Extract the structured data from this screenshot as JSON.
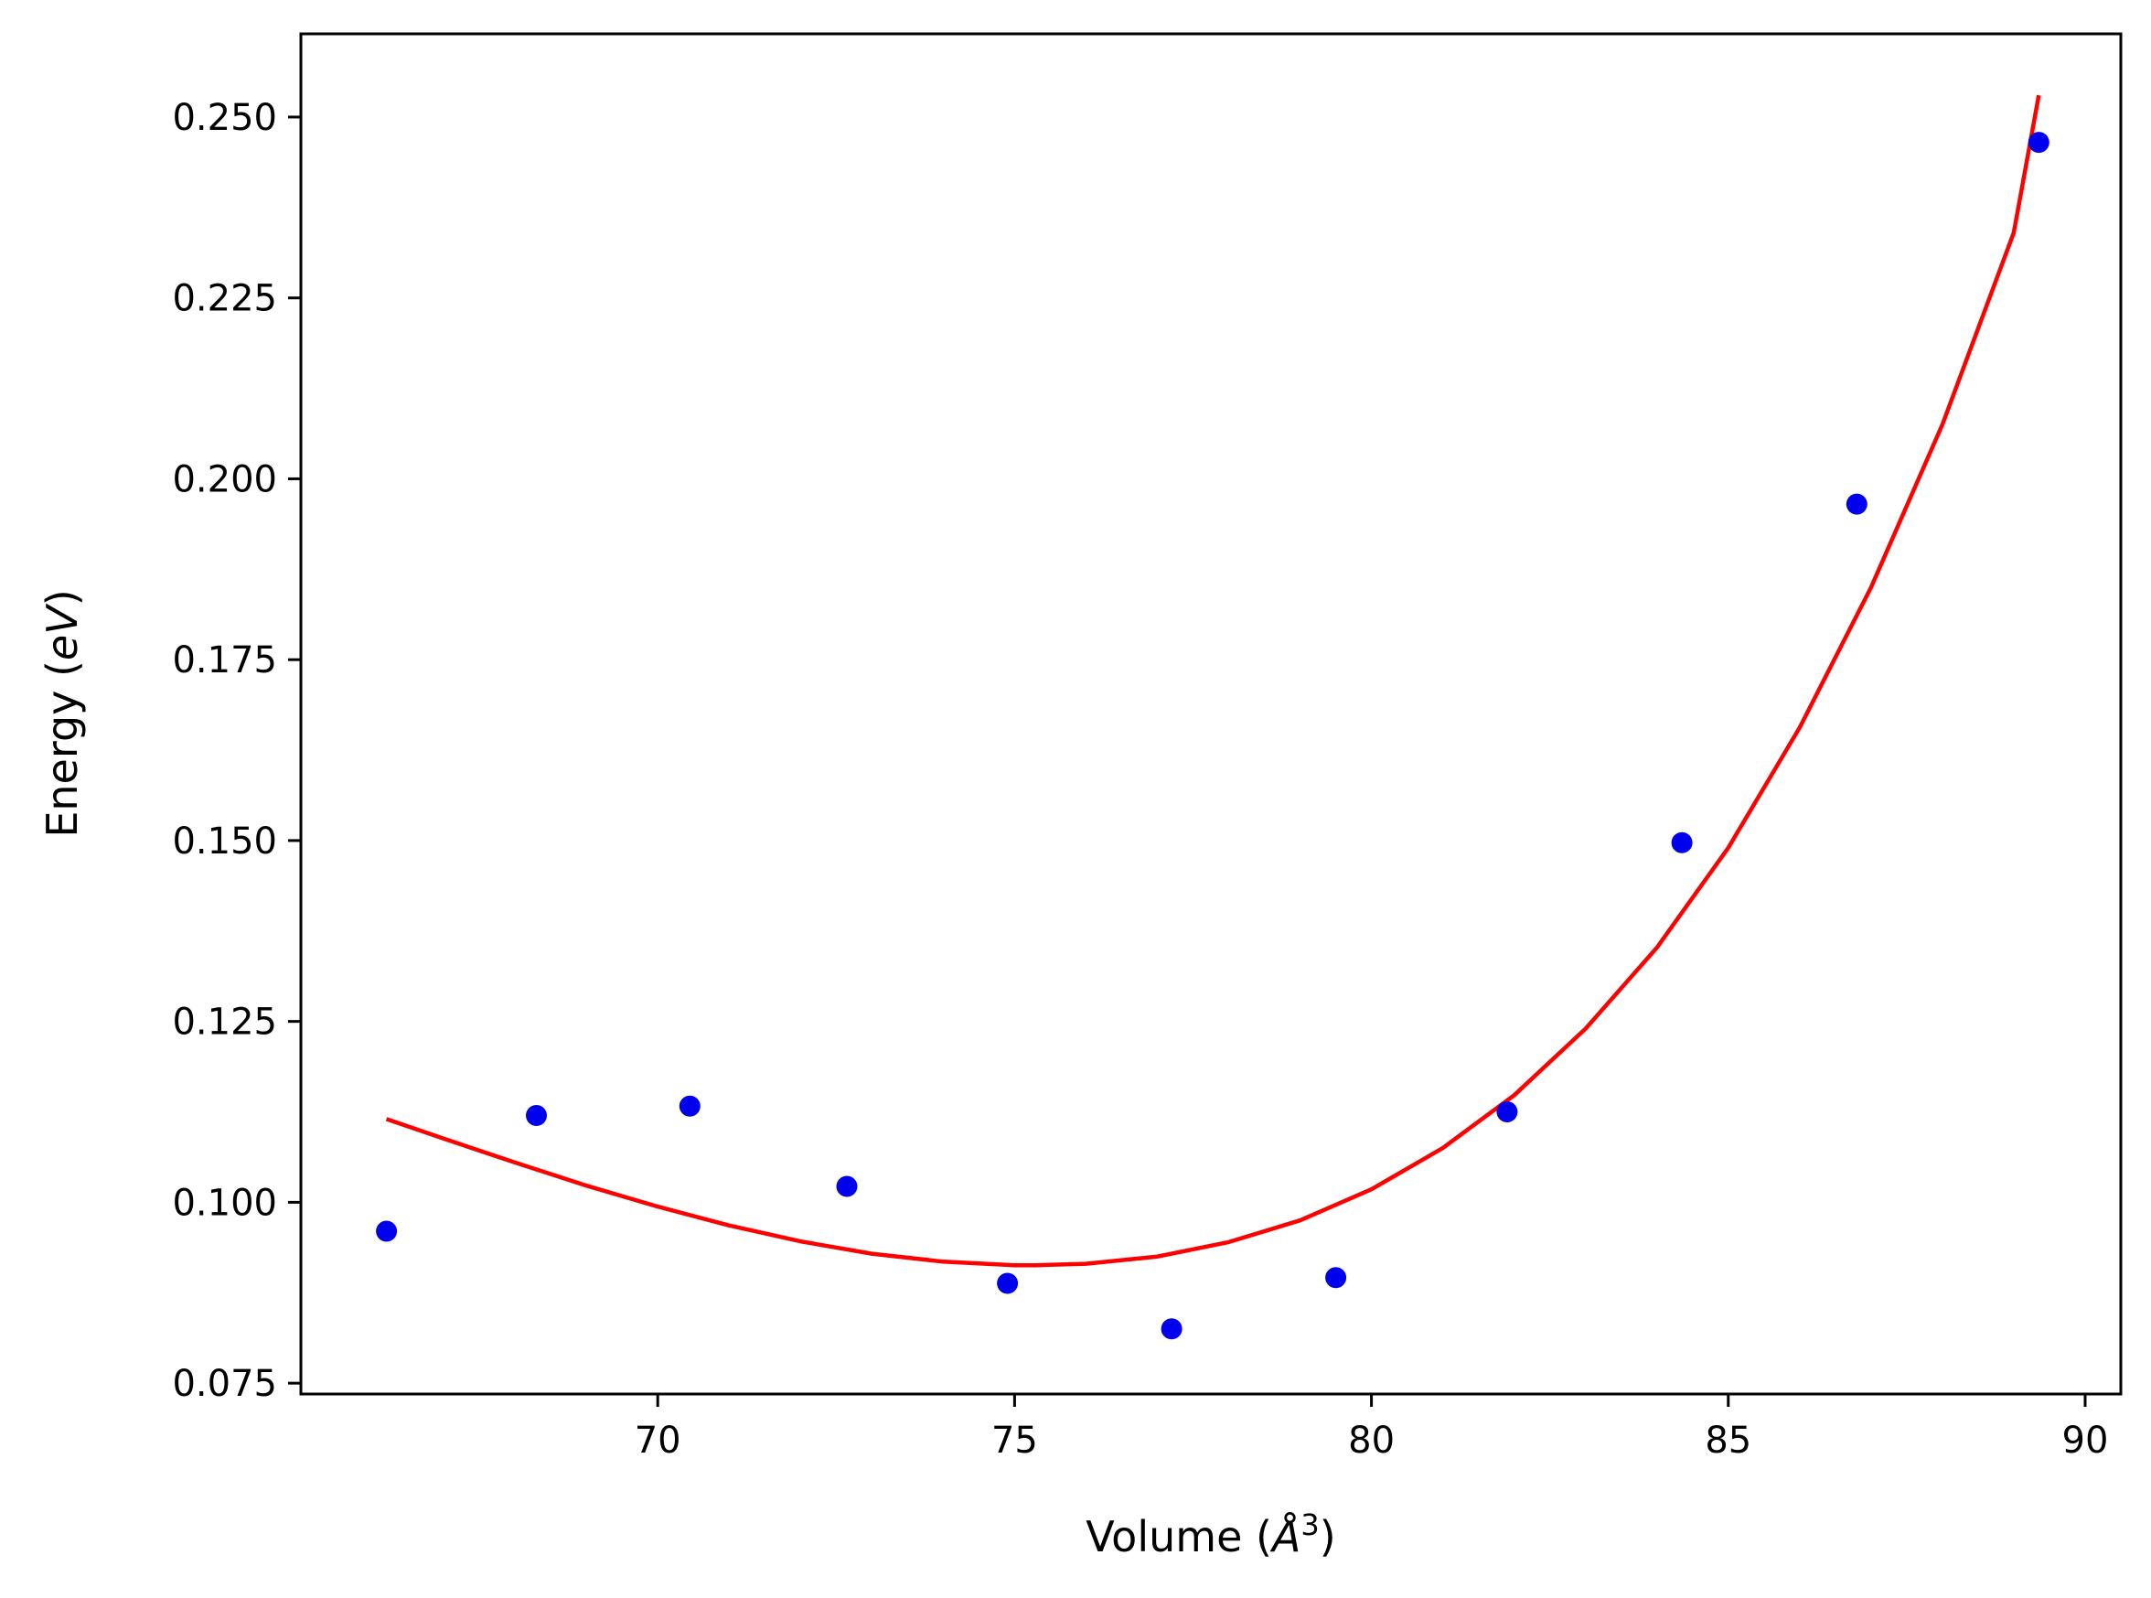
{
  "chart_data": {
    "type": "scatter",
    "xlabel": "Volume (Å³)",
    "ylabel": "Energy (eV)",
    "xlabel_parts": {
      "before": "Volume (",
      "symbol": "Å",
      "sup": "3",
      "after": ")"
    },
    "ylabel_parts": {
      "before": "Energy (",
      "italic": "eV",
      "after": ")"
    },
    "xlim": [
      65.0,
      90.5
    ],
    "ylim": [
      0.0735,
      0.2615
    ],
    "x_ticks": [
      70,
      75,
      80,
      85,
      90
    ],
    "y_ticks": [
      0.075,
      0.1,
      0.125,
      0.15,
      0.175,
      0.2,
      0.225,
      0.25
    ],
    "x_tick_labels": [
      "70",
      "75",
      "80",
      "85",
      "90"
    ],
    "y_tick_labels": [
      "0.075",
      "0.100",
      "0.125",
      "0.150",
      "0.175",
      "0.200",
      "0.225",
      "0.250"
    ],
    "grid": false,
    "series": [
      {
        "kind": "points",
        "color": "#0000ee",
        "x": [
          66.2,
          68.3,
          70.45,
          72.65,
          74.9,
          77.2,
          79.5,
          81.9,
          84.35,
          86.8,
          89.35
        ],
        "y": [
          0.096,
          0.112,
          0.1133,
          0.1022,
          0.0888,
          0.0825,
          0.0896,
          0.1125,
          0.1497,
          0.1965,
          0.2465
        ]
      },
      {
        "kind": "fit-line",
        "color": "#ff0000",
        "x": [
          66.2,
          67.0,
          68.0,
          69.0,
          70.0,
          71.0,
          72.0,
          73.0,
          74.0,
          75.0,
          75.3,
          76.0,
          77.0,
          78.0,
          79.0,
          80.0,
          81.0,
          82.0,
          83.0,
          84.0,
          85.0,
          86.0,
          87.0,
          88.0,
          89.0,
          89.35
        ],
        "y": [
          0.1115,
          0.1088,
          0.1055,
          0.1023,
          0.0994,
          0.0968,
          0.0946,
          0.0929,
          0.0918,
          0.0913,
          0.0913,
          0.0915,
          0.0925,
          0.0945,
          0.0975,
          0.1018,
          0.1075,
          0.1148,
          0.124,
          0.1352,
          0.149,
          0.1656,
          0.185,
          0.2075,
          0.234,
          0.253
        ]
      }
    ]
  }
}
